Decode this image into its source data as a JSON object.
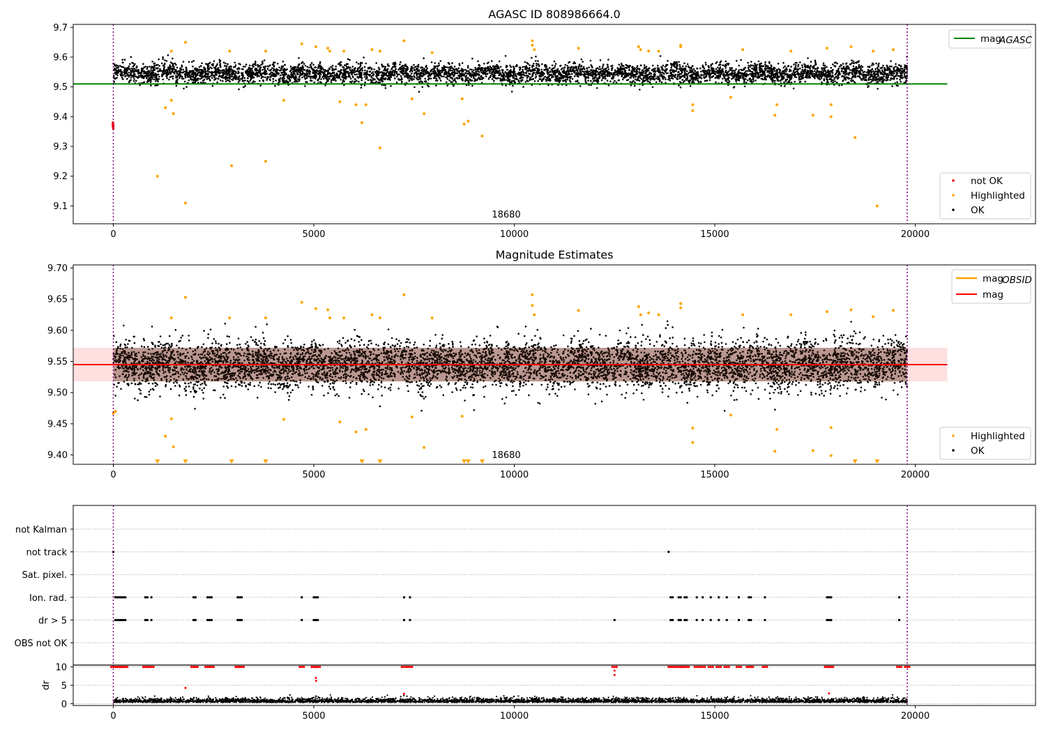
{
  "colors": {
    "ok": "#000000",
    "highlighted": "#ffa500",
    "not_ok": "#ff0000",
    "mag_agasc": "#008000",
    "mag_obsid": "#ffa500",
    "mag": "#ff0000",
    "band": "#ffb0b0",
    "vline": "#800080",
    "dark_band": "#3a1500"
  },
  "chart_data": [
    {
      "type": "scatter",
      "title": "AGASC ID 808986664.0",
      "xlim": [
        -1000,
        23000
      ],
      "ylim": [
        9.04,
        9.71
      ],
      "xticks": [
        0,
        5000,
        10000,
        15000,
        20000
      ],
      "yticks": [
        9.1,
        9.2,
        9.3,
        9.4,
        9.5,
        9.6,
        9.7
      ],
      "obsid_boundaries": [
        0,
        19800
      ],
      "obsid_label": "18680",
      "hline": {
        "name": "mag_AGASC",
        "value": 9.51,
        "xrange": [
          -1000,
          20800
        ]
      },
      "legend_top": [
        "mag",
        "AGASC"
      ],
      "legend_bottom": [
        "not OK",
        "Highlighted",
        "OK"
      ],
      "ok_band": {
        "center": 9.545,
        "spread": 0.03,
        "x": [
          0,
          19800
        ]
      },
      "not_ok": [
        [
          -10,
          9.37
        ],
        [
          -10,
          9.375
        ],
        [
          -5,
          9.365
        ],
        [
          0,
          9.36
        ],
        [
          -8,
          9.38
        ],
        [
          -3,
          9.372
        ],
        [
          0,
          9.368
        ]
      ],
      "highlighted": [
        [
          1100,
          9.2
        ],
        [
          1300,
          9.43
        ],
        [
          1450,
          9.455
        ],
        [
          1500,
          9.41
        ],
        [
          1800,
          9.11
        ],
        [
          1800,
          9.65
        ],
        [
          1450,
          9.62
        ],
        [
          2900,
          9.62
        ],
        [
          2950,
          9.235
        ],
        [
          3800,
          9.25
        ],
        [
          3800,
          9.62
        ],
        [
          4250,
          9.455
        ],
        [
          4700,
          9.645
        ],
        [
          5050,
          9.635
        ],
        [
          5350,
          9.63
        ],
        [
          5400,
          9.62
        ],
        [
          5650,
          9.45
        ],
        [
          5750,
          9.62
        ],
        [
          6050,
          9.44
        ],
        [
          6200,
          9.38
        ],
        [
          6300,
          9.44
        ],
        [
          6450,
          9.625
        ],
        [
          6650,
          9.295
        ],
        [
          6650,
          9.62
        ],
        [
          7250,
          9.655
        ],
        [
          7450,
          9.46
        ],
        [
          7750,
          9.41
        ],
        [
          7950,
          9.615
        ],
        [
          8700,
          9.46
        ],
        [
          8750,
          9.375
        ],
        [
          8850,
          9.385
        ],
        [
          9200,
          9.335
        ],
        [
          10450,
          9.655
        ],
        [
          10450,
          9.64
        ],
        [
          10500,
          9.625
        ],
        [
          11600,
          9.63
        ],
        [
          13100,
          9.635
        ],
        [
          13150,
          9.625
        ],
        [
          13350,
          9.62
        ],
        [
          13600,
          9.62
        ],
        [
          14150,
          9.64
        ],
        [
          14150,
          9.635
        ],
        [
          14450,
          9.44
        ],
        [
          14450,
          9.42
        ],
        [
          15400,
          9.465
        ],
        [
          15700,
          9.625
        ],
        [
          16500,
          9.405
        ],
        [
          16550,
          9.44
        ],
        [
          16900,
          9.62
        ],
        [
          17450,
          9.405
        ],
        [
          17800,
          9.63
        ],
        [
          17900,
          9.44
        ],
        [
          17900,
          9.4
        ],
        [
          18400,
          9.635
        ],
        [
          18500,
          9.33
        ],
        [
          18950,
          9.62
        ],
        [
          19050,
          9.1
        ],
        [
          19450,
          9.625
        ]
      ]
    },
    {
      "type": "scatter",
      "title": "Magnitude Estimates",
      "xlim": [
        -1000,
        23000
      ],
      "ylim": [
        9.385,
        9.705
      ],
      "xticks": [
        0,
        5000,
        10000,
        15000,
        20000
      ],
      "yticks": [
        9.4,
        9.45,
        9.5,
        9.55,
        9.6,
        9.65,
        9.7
      ],
      "obsid_boundaries": [
        0,
        19800
      ],
      "obsid_label": "18680",
      "hlines": [
        {
          "name": "mag_OBSID",
          "value": 9.545,
          "xrange": [
            -1000,
            20800
          ]
        },
        {
          "name": "mag",
          "value": 9.545,
          "xrange": [
            -1000,
            20800
          ]
        }
      ],
      "band": {
        "low": 9.518,
        "high": 9.572,
        "xrange": [
          -1000,
          20800
        ]
      },
      "legend_top": [
        "mag",
        "OBSID",
        "mag"
      ],
      "legend_bottom": [
        "Highlighted",
        "OK"
      ],
      "ok_band": {
        "center": 9.545,
        "spread": 0.035,
        "x": [
          0,
          19800
        ]
      },
      "highlighted": [
        [
          0,
          9.467
        ],
        [
          50,
          9.47
        ],
        [
          1300,
          9.43
        ],
        [
          1450,
          9.458
        ],
        [
          1500,
          9.413
        ],
        [
          1800,
          9.653
        ],
        [
          1450,
          9.62
        ],
        [
          2900,
          9.62
        ],
        [
          3800,
          9.62
        ],
        [
          4250,
          9.457
        ],
        [
          4700,
          9.645
        ],
        [
          5050,
          9.635
        ],
        [
          5350,
          9.633
        ],
        [
          5400,
          9.62
        ],
        [
          5650,
          9.453
        ],
        [
          5750,
          9.62
        ],
        [
          6050,
          9.437
        ],
        [
          6300,
          9.441
        ],
        [
          6450,
          9.625
        ],
        [
          6650,
          9.62
        ],
        [
          7250,
          9.657
        ],
        [
          7450,
          9.461
        ],
        [
          7750,
          9.412
        ],
        [
          7950,
          9.62
        ],
        [
          8700,
          9.462
        ],
        [
          10450,
          9.657
        ],
        [
          10450,
          9.64
        ],
        [
          10500,
          9.625
        ],
        [
          11600,
          9.632
        ],
        [
          13100,
          9.638
        ],
        [
          13150,
          9.625
        ],
        [
          13350,
          9.628
        ],
        [
          13600,
          9.625
        ],
        [
          14150,
          9.643
        ],
        [
          14150,
          9.636
        ],
        [
          14450,
          9.443
        ],
        [
          14450,
          9.42
        ],
        [
          15400,
          9.464
        ],
        [
          15700,
          9.625
        ],
        [
          16500,
          9.406
        ],
        [
          16550,
          9.441
        ],
        [
          16900,
          9.625
        ],
        [
          17450,
          9.407
        ],
        [
          17800,
          9.63
        ],
        [
          17900,
          9.444
        ],
        [
          17900,
          9.399
        ],
        [
          18400,
          9.633
        ],
        [
          18950,
          9.622
        ],
        [
          19450,
          9.632
        ]
      ],
      "below_range": [
        1100,
        1800,
        2950,
        3800,
        6200,
        6650,
        8750,
        8850,
        9200,
        18500,
        19050
      ]
    },
    {
      "type": "scatter",
      "title": "",
      "xlim": [
        -1000,
        23000
      ],
      "xticks": [
        0,
        5000,
        10000,
        15000,
        20000
      ],
      "obsid_boundaries": [
        0,
        19800
      ],
      "flag_rows": [
        "not Kalman",
        "not track",
        "Sat. pixel.",
        "Ion. rad.",
        "dr > 5",
        "OBS not OK"
      ],
      "flags": {
        "not track": [
          0,
          13850
        ],
        "Ion. rad.": [
          50,
          100,
          150,
          200,
          250,
          300,
          800,
          850,
          950,
          2000,
          2050,
          2350,
          2400,
          2450,
          3100,
          3150,
          3200,
          4700,
          5000,
          5050,
          5100,
          7250,
          7400,
          13900,
          13950,
          14100,
          14150,
          14250,
          14300,
          14550,
          14700,
          14900,
          15100,
          15300,
          15600,
          15850,
          15900,
          16250,
          17800,
          17850,
          17900,
          19600
        ],
        "dr > 5": [
          50,
          100,
          150,
          200,
          250,
          300,
          800,
          850,
          950,
          2000,
          2050,
          2350,
          2400,
          2450,
          3100,
          3150,
          3200,
          4700,
          5000,
          5050,
          5100,
          7250,
          7400,
          12500,
          13900,
          13950,
          14100,
          14150,
          14250,
          14300,
          14550,
          14700,
          14900,
          15100,
          15300,
          15600,
          15850,
          15900,
          16250,
          17800,
          17850,
          17900,
          19600
        ]
      },
      "dr_subplot": {
        "ylabel": "dr",
        "ylim": [
          -0.5,
          10.5
        ],
        "yticks": [
          0,
          5,
          10
        ],
        "high_x": [
          0,
          50,
          100,
          150,
          200,
          250,
          300,
          800,
          850,
          950,
          2000,
          2050,
          2350,
          2400,
          2450,
          3100,
          3150,
          3200,
          4700,
          5000,
          5050,
          5100,
          7250,
          7400,
          12500,
          13900,
          13950,
          14100,
          14150,
          14250,
          14300,
          14550,
          14700,
          14900,
          15100,
          15300,
          15600,
          15850,
          15900,
          16250,
          17800,
          17850,
          17900,
          19600,
          19800
        ],
        "extra_red": [
          [
            5050,
            7.0
          ],
          [
            5060,
            6.2
          ],
          [
            12500,
            9.0
          ],
          [
            12500,
            7.8
          ],
          [
            1800,
            4.3
          ],
          [
            7250,
            2.7
          ],
          [
            17850,
            2.8
          ]
        ]
      }
    }
  ]
}
